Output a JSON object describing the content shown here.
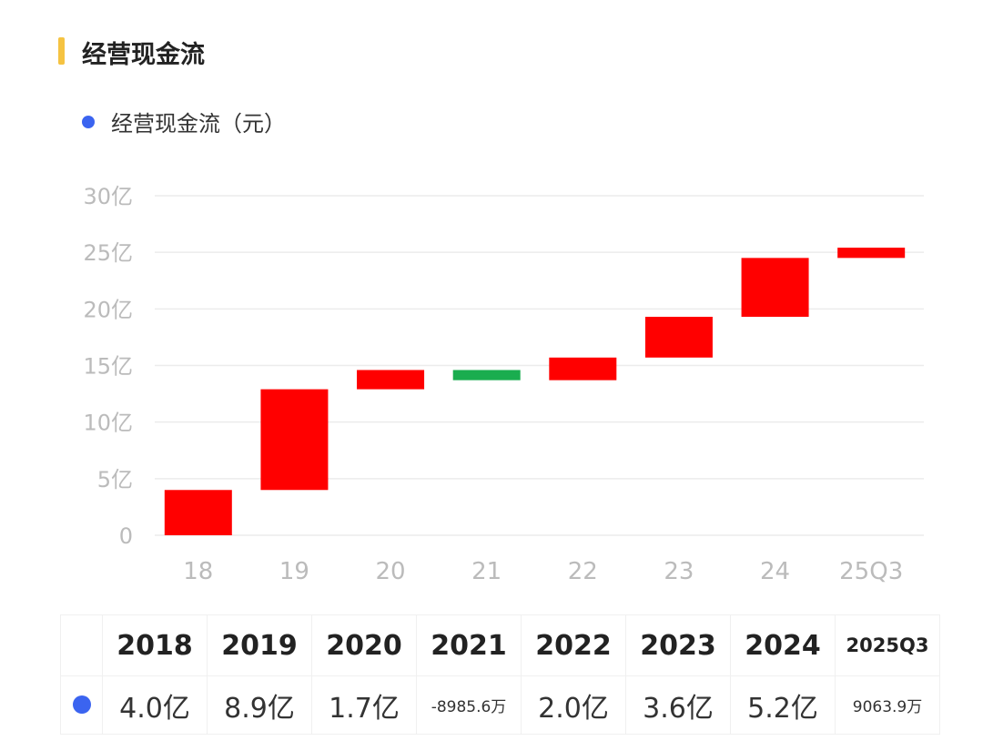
{
  "header": {
    "title": "经营现金流"
  },
  "colors": {
    "accent": "#f5c342",
    "series": "#3b64f0",
    "up": "#ff0000",
    "down": "#1aad4f"
  },
  "chart_data": {
    "type": "bar",
    "subtype": "waterfall",
    "legend": "经营现金流（元）",
    "categories": [
      "18",
      "19",
      "20",
      "21",
      "22",
      "23",
      "24",
      "25Q3"
    ],
    "values": [
      4.0,
      8.9,
      1.7,
      -0.89856,
      2.0,
      3.6,
      5.2,
      0.90639
    ],
    "unit": "亿",
    "ylim": [
      0,
      30
    ],
    "yticks": [
      0,
      5,
      10,
      15,
      20,
      25,
      30
    ],
    "ytick_labels": [
      "0",
      "5亿",
      "10亿",
      "15亿",
      "20亿",
      "25亿",
      "30亿"
    ],
    "grid": true
  },
  "table": {
    "headers": [
      "2018",
      "2019",
      "2020",
      "2021",
      "2022",
      "2023",
      "2024",
      "2025Q3"
    ],
    "values": [
      "4.0亿",
      "8.9亿",
      "1.7亿",
      "-8985.6万",
      "2.0亿",
      "3.6亿",
      "5.2亿",
      "9063.9万"
    ]
  }
}
